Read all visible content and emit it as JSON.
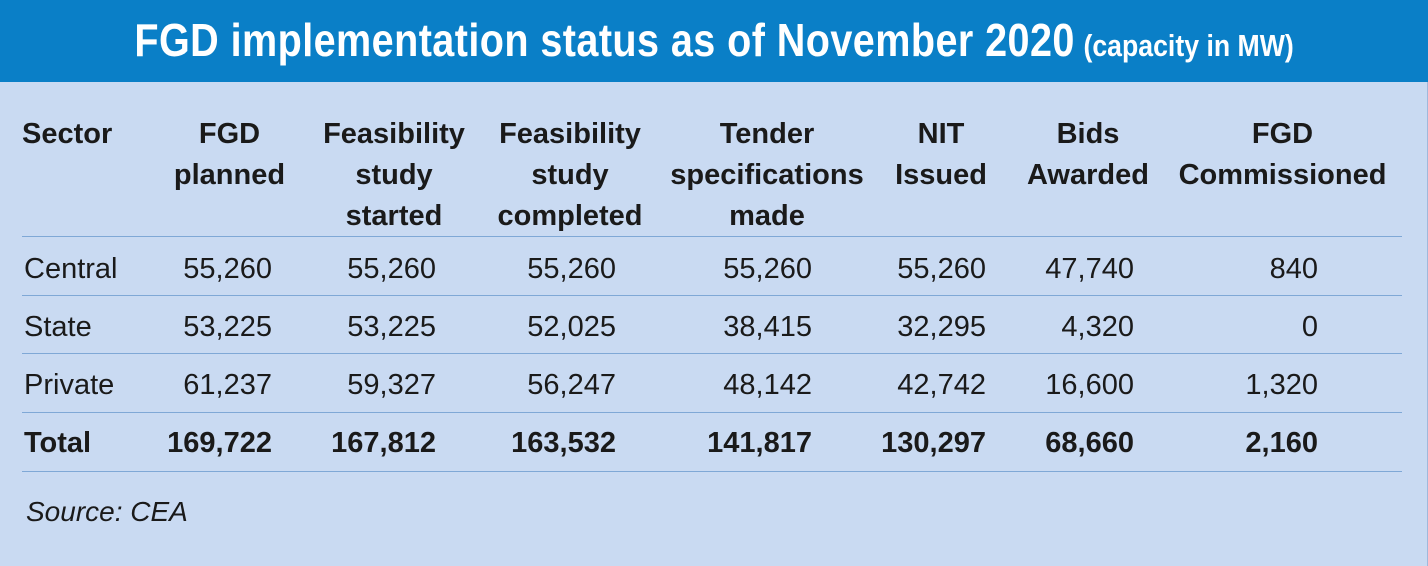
{
  "title": {
    "main": "FGD implementation status as of November 2020",
    "unit": "(capacity in MW)"
  },
  "colors": {
    "title_bar": "#0a7fc7",
    "panel": "#c9daf2",
    "rule": "#7fa8d6"
  },
  "chart_data": {
    "type": "table",
    "title": "FGD implementation status as of November 2020",
    "unit": "(capacity in MW)",
    "columns": [
      [
        "Sector"
      ],
      [
        "FGD",
        "planned"
      ],
      [
        "Feasibility",
        "study",
        "started"
      ],
      [
        "Feasibility",
        "study",
        "completed"
      ],
      [
        "Tender",
        "specifications",
        "made"
      ],
      [
        "NIT",
        "Issued"
      ],
      [
        "Bids",
        "Awarded"
      ],
      [
        "FGD",
        "Commissioned"
      ]
    ],
    "rows": [
      [
        "Central",
        "55,260",
        "55,260",
        "55,260",
        "55,260",
        "55,260",
        "47,740",
        "840"
      ],
      [
        "State",
        "53,225",
        "53,225",
        "52,025",
        "38,415",
        "32,295",
        "4,320",
        "0"
      ],
      [
        "Private",
        "61,237",
        "59,327",
        "56,247",
        "48,142",
        "42,742",
        "16,600",
        "1,320"
      ],
      [
        "Total",
        "169,722",
        "167,812",
        "163,532",
        "141,817",
        "130,297",
        "68,660",
        "2,160"
      ]
    ],
    "source": "Source: CEA"
  }
}
